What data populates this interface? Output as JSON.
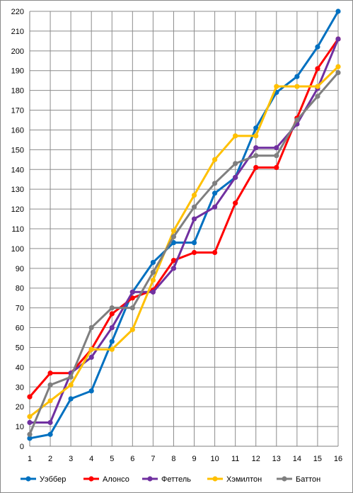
{
  "chart_data": {
    "type": "line",
    "title": "",
    "xlabel": "",
    "ylabel": "",
    "x": [
      1,
      2,
      3,
      4,
      5,
      6,
      7,
      8,
      9,
      10,
      11,
      12,
      13,
      14,
      15,
      16
    ],
    "xlim": [
      1,
      16
    ],
    "ylim": [
      0,
      220
    ],
    "ytick_step": 10,
    "grid": true,
    "legend_position": "bottom",
    "series": [
      {
        "name": "Уэббер",
        "color": "#0070c0",
        "values": [
          4,
          6,
          24,
          28,
          53,
          78,
          93,
          103,
          103,
          128,
          136,
          161,
          179,
          187,
          202,
          220
        ]
      },
      {
        "name": "Алонсо",
        "color": "#ff0000",
        "values": [
          25,
          37,
          37,
          49,
          67,
          75,
          79,
          94,
          98,
          98,
          123,
          141,
          141,
          166,
          191,
          206
        ]
      },
      {
        "name": "Феттель",
        "color": "#7030a0",
        "values": [
          12,
          12,
          37,
          45,
          60,
          78,
          78,
          90,
          115,
          121,
          136,
          151,
          151,
          163,
          181,
          206
        ]
      },
      {
        "name": "Хэмилтон",
        "color": "#ffc000",
        "values": [
          15,
          23,
          31,
          49,
          49,
          59,
          84,
          109,
          127,
          145,
          157,
          157,
          182,
          182,
          182,
          192
        ]
      },
      {
        "name": "Баттон",
        "color": "#7f7f7f",
        "values": [
          6,
          31,
          35,
          60,
          70,
          70,
          88,
          106,
          121,
          133,
          143,
          147,
          147,
          165,
          177,
          189
        ]
      }
    ]
  }
}
